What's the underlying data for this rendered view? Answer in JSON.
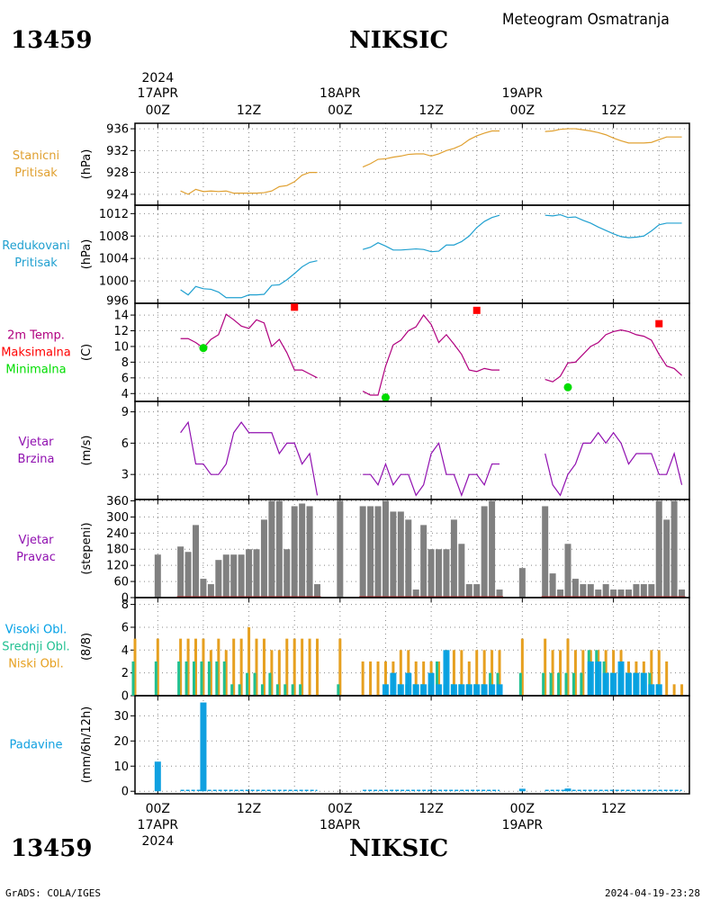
{
  "header": {
    "station_id": "13459",
    "station_name": "NIKSIC",
    "subtitle": "Meteogram Osmatranja"
  },
  "footer": {
    "credit": "GrADS: COLA/IGES",
    "timestamp": "2024-04-19-23:28"
  },
  "time_axis": {
    "year": "2024",
    "top_days": [
      "17APR",
      "18APR",
      "19APR"
    ],
    "bottom_days": [
      "17APR",
      "18APR",
      "19APR"
    ],
    "hour_labels": [
      "00Z",
      "12Z",
      "00Z",
      "12Z",
      "00Z",
      "12Z"
    ],
    "x_range_hours": [
      -3,
      70
    ]
  },
  "colors": {
    "pressure": "#e0a030",
    "reduced": "#20a0d0",
    "temp": "#b0007f",
    "tmax": "#ff0000",
    "tmin": "#00dd00",
    "wind": "#9010b0",
    "dir_bar": "#808080",
    "cloud_high": "#00a0e6",
    "cloud_mid": "#20c090",
    "cloud_low": "#e6a020",
    "precip": "#10a0e0"
  },
  "chart_data": [
    {
      "type": "line",
      "name": "pressure",
      "labels": [
        "Stanicni",
        "Pritisak"
      ],
      "ylabel": "(hPa)",
      "ylim": [
        922,
        937
      ],
      "yticks": [
        924,
        928,
        932,
        936
      ],
      "segments": [
        {
          "x": [
            3,
            4,
            5,
            6,
            7,
            8,
            9,
            10,
            11,
            12,
            13,
            14,
            15,
            16,
            17,
            18,
            19,
            20,
            21
          ],
          "y": [
            924.6,
            924.0,
            924.9,
            924.5,
            924.6,
            924.5,
            924.6,
            924.2,
            924.2,
            924.2,
            924.2,
            924.3,
            924.6,
            925.4,
            925.6,
            926.3,
            927.5,
            928.0,
            928.0
          ]
        },
        {
          "x": [
            27,
            28,
            29,
            30,
            31,
            32,
            33,
            34,
            35,
            36,
            37,
            38,
            39,
            40,
            41,
            42,
            43,
            44,
            45
          ],
          "y": [
            929.0,
            929.6,
            930.4,
            930.5,
            930.8,
            931.0,
            931.3,
            931.4,
            931.4,
            931.0,
            931.4,
            932.0,
            932.4,
            933.0,
            934.0,
            934.7,
            935.2,
            935.6,
            935.6
          ]
        },
        {
          "x": [
            51,
            52,
            53,
            54,
            55,
            56,
            57,
            58,
            59,
            60,
            61,
            62,
            63,
            64,
            65,
            66,
            67,
            68,
            69
          ],
          "y": [
            935.5,
            935.6,
            935.9,
            936.0,
            936.0,
            935.8,
            935.6,
            935.3,
            934.9,
            934.3,
            933.8,
            933.4,
            933.4,
            933.4,
            933.5,
            934.0,
            934.5,
            934.5,
            934.5
          ]
        }
      ]
    },
    {
      "type": "line",
      "name": "reduced",
      "labels": [
        "Redukovani",
        "Pritisak"
      ],
      "ylabel": "(hPa)",
      "ylim": [
        996,
        1013.5
      ],
      "yticks": [
        1000,
        1004,
        1008,
        1012
      ],
      "ytick_labels": [
        "996",
        "1000",
        "1004",
        "1008",
        "1012"
      ],
      "segments": [
        {
          "x": [
            3,
            4,
            5,
            6,
            7,
            8,
            9,
            10,
            11,
            12,
            13,
            14,
            15,
            16,
            17,
            18,
            19,
            20,
            21
          ],
          "y": [
            998.4,
            997.5,
            999.0,
            998.6,
            998.5,
            998.0,
            997.0,
            997.0,
            997.0,
            997.5,
            997.5,
            997.6,
            999.2,
            999.3,
            1000.2,
            1001.3,
            1002.5,
            1003.3,
            1003.6
          ]
        },
        {
          "x": [
            27,
            28,
            29,
            30,
            31,
            32,
            33,
            34,
            35,
            36,
            37,
            38,
            39,
            40,
            41,
            42,
            43,
            44,
            45
          ],
          "y": [
            1005.6,
            1006.0,
            1006.8,
            1006.2,
            1005.5,
            1005.5,
            1005.6,
            1005.7,
            1005.6,
            1005.2,
            1005.3,
            1006.4,
            1006.4,
            1007.0,
            1008.0,
            1009.5,
            1010.6,
            1011.3,
            1011.7
          ]
        },
        {
          "x": [
            51,
            52,
            53,
            54,
            55,
            56,
            57,
            58,
            59,
            60,
            61,
            62,
            63,
            64,
            65,
            66,
            67,
            68,
            69
          ],
          "y": [
            1011.7,
            1011.6,
            1011.8,
            1011.3,
            1011.4,
            1010.8,
            1010.3,
            1009.6,
            1009.0,
            1008.4,
            1007.9,
            1007.7,
            1007.8,
            1008.0,
            1008.9,
            1010.0,
            1010.3,
            1010.3,
            1010.3
          ]
        }
      ]
    },
    {
      "type": "line",
      "name": "temperature",
      "labels": [
        "2m Temp.",
        "Maksimalna",
        "Minimalna"
      ],
      "ylabel": "(C)",
      "ylim": [
        3,
        15.5
      ],
      "yticks": [
        4,
        6,
        8,
        10,
        12,
        14
      ],
      "segments": [
        {
          "x": [
            3,
            4,
            5,
            6,
            7,
            8,
            9,
            10,
            11,
            12,
            13,
            14,
            15,
            16,
            17,
            18,
            19,
            20,
            21
          ],
          "y": [
            11.0,
            11.0,
            10.5,
            9.8,
            10.9,
            11.5,
            14.1,
            13.4,
            12.6,
            12.3,
            13.4,
            13.0,
            10.0,
            10.9,
            9.2,
            7.0,
            7.0,
            6.5,
            6.0
          ]
        },
        {
          "x": [
            27,
            28,
            29,
            30,
            31,
            32,
            33,
            34,
            35,
            36,
            37,
            38,
            39,
            40,
            41,
            42,
            43,
            44,
            45
          ],
          "y": [
            4.3,
            3.8,
            3.8,
            7.5,
            10.2,
            10.8,
            12.0,
            12.5,
            14.0,
            12.8,
            10.5,
            11.5,
            10.3,
            9.0,
            7.0,
            6.8,
            7.2,
            7.0,
            7.0
          ]
        },
        {
          "x": [
            51,
            52,
            53,
            54,
            55,
            56,
            57,
            58,
            59,
            60,
            61,
            62,
            63,
            64,
            65,
            66,
            67,
            68,
            69
          ],
          "y": [
            5.8,
            5.5,
            6.2,
            7.9,
            8.0,
            9.0,
            10.0,
            10.5,
            11.5,
            11.9,
            12.1,
            11.9,
            11.5,
            11.3,
            10.8,
            9.0,
            7.5,
            7.2,
            6.3
          ]
        }
      ],
      "max_markers": {
        "x": [
          18,
          42,
          66
        ],
        "y": [
          15.0,
          14.6,
          12.9
        ]
      },
      "min_markers": {
        "x": [
          6,
          30,
          54
        ],
        "y": [
          9.8,
          3.5,
          4.8
        ]
      }
    },
    {
      "type": "line",
      "name": "wind_speed",
      "labels": [
        "Vjetar",
        "Brzina"
      ],
      "ylabel": "(m/s)",
      "ylim": [
        0.6,
        10
      ],
      "yticks": [
        3,
        6,
        9
      ],
      "segments": [
        {
          "x": [
            3,
            4,
            5,
            6,
            7,
            8,
            9,
            10,
            11,
            12,
            13,
            14,
            15,
            16,
            17,
            18,
            19,
            20,
            21
          ],
          "y": [
            7,
            8,
            4,
            4,
            3,
            3,
            4,
            7,
            8,
            7,
            7,
            7,
            7,
            5,
            6,
            6,
            4,
            5,
            1
          ]
        },
        {
          "x": [
            27,
            28,
            29,
            30,
            31,
            32,
            33,
            34,
            35,
            36,
            37,
            38,
            39,
            40,
            41,
            42,
            43,
            44,
            45
          ],
          "y": [
            3,
            3,
            2,
            4,
            2,
            3,
            3,
            1,
            2,
            5,
            6,
            3,
            3,
            1,
            3,
            3,
            2,
            4,
            4
          ]
        },
        {
          "x": [
            51,
            52,
            53,
            54,
            55,
            56,
            57,
            58,
            59,
            60,
            61,
            62,
            63,
            64,
            65,
            66,
            67,
            68,
            69
          ],
          "y": [
            5,
            2,
            1,
            3,
            4,
            6,
            6,
            7,
            6,
            7,
            6,
            4,
            5,
            5,
            5,
            3,
            3,
            5,
            2
          ]
        }
      ]
    },
    {
      "type": "bar",
      "name": "wind_direction",
      "labels": [
        "Vjetar",
        "Pravac"
      ],
      "ylabel": "(stepeni)",
      "ylim": [
        0,
        365
      ],
      "yticks": [
        0,
        60,
        120,
        180,
        240,
        300,
        360
      ],
      "x": [
        0,
        3,
        4,
        5,
        6,
        7,
        8,
        9,
        10,
        11,
        12,
        13,
        14,
        15,
        16,
        17,
        18,
        19,
        20,
        21,
        24,
        27,
        28,
        29,
        30,
        31,
        32,
        33,
        34,
        35,
        36,
        37,
        38,
        39,
        40,
        41,
        42,
        43,
        44,
        45,
        48,
        51,
        52,
        53,
        54,
        55,
        56,
        57,
        58,
        59,
        60,
        61,
        62,
        63,
        64,
        65,
        66,
        67,
        68,
        69
      ],
      "values": [
        160,
        190,
        170,
        270,
        70,
        50,
        140,
        160,
        160,
        160,
        180,
        180,
        290,
        360,
        360,
        180,
        340,
        350,
        340,
        50,
        360,
        340,
        340,
        340,
        360,
        320,
        320,
        290,
        30,
        270,
        180,
        180,
        180,
        290,
        200,
        50,
        50,
        340,
        360,
        30,
        110,
        340,
        90,
        30,
        200,
        70,
        50,
        50,
        30,
        50,
        30,
        30,
        30,
        50,
        50,
        50,
        360,
        290,
        360,
        30
      ]
    },
    {
      "type": "bar",
      "name": "clouds",
      "labels": [
        "Visoki Obl.",
        "Srednji Obl.",
        "Niski Obl."
      ],
      "ylabel": "(8/8)",
      "ylim": [
        0,
        8.6
      ],
      "yticks": [
        0,
        2,
        4,
        6,
        8
      ],
      "x": [
        -3,
        0,
        3,
        4,
        5,
        6,
        7,
        8,
        9,
        10,
        11,
        12,
        13,
        14,
        15,
        16,
        17,
        18,
        19,
        20,
        21,
        24,
        27,
        28,
        29,
        30,
        31,
        32,
        33,
        34,
        35,
        36,
        37,
        38,
        39,
        40,
        41,
        42,
        43,
        44,
        45,
        48,
        51,
        52,
        53,
        54,
        55,
        56,
        57,
        58,
        59,
        60,
        61,
        62,
        63,
        64,
        65,
        66,
        67,
        68,
        69
      ],
      "series": [
        {
          "name": "Niski Obl.",
          "values": [
            5,
            5,
            5,
            5,
            5,
            5,
            4,
            5,
            4,
            5,
            5,
            6,
            5,
            5,
            4,
            4,
            5,
            5,
            5,
            5,
            5,
            5,
            3,
            3,
            3,
            3,
            3,
            4,
            4,
            3,
            3,
            3,
            3,
            4,
            4,
            4,
            3,
            4,
            4,
            4,
            4,
            5,
            5,
            4,
            4,
            5,
            4,
            4,
            4,
            4,
            4,
            4,
            4,
            3,
            3,
            3,
            4,
            4,
            3,
            1,
            1
          ]
        },
        {
          "name": "Srednji Obl.",
          "values": [
            3,
            3,
            3,
            3,
            3,
            3,
            3,
            3,
            3,
            1,
            1,
            2,
            2,
            1,
            2,
            1,
            1,
            1,
            1,
            0,
            0,
            1,
            0,
            0,
            0,
            0,
            0,
            1,
            1,
            1,
            1,
            1,
            3,
            1,
            1,
            1,
            1,
            1,
            1,
            2,
            2,
            2,
            2,
            2,
            2,
            2,
            2,
            2,
            4,
            4,
            3,
            2,
            2,
            2,
            2,
            2,
            2,
            1,
            0,
            0,
            0
          ]
        },
        {
          "name": "Visoki Obl.",
          "values": [
            0,
            0,
            0,
            0,
            0,
            0,
            0,
            0,
            0,
            0,
            0,
            0,
            0,
            0,
            0,
            0,
            0,
            0,
            0,
            0,
            0,
            0,
            0,
            0,
            0,
            1,
            2,
            1,
            2,
            1,
            1,
            2,
            1,
            4,
            1,
            1,
            1,
            1,
            1,
            1,
            1,
            0,
            0,
            0,
            0,
            0,
            0,
            0,
            3,
            3,
            2,
            2,
            3,
            2,
            2,
            2,
            1,
            1,
            0,
            0,
            0
          ]
        }
      ]
    },
    {
      "type": "bar",
      "name": "precipitation",
      "labels": [
        "Padavine"
      ],
      "ylabel": "(mm/6h/12h)",
      "ylim": [
        -1,
        38
      ],
      "yticks": [
        0,
        10,
        20,
        30
      ],
      "x": [
        0,
        6,
        48,
        54
      ],
      "values": [
        11.8,
        35.3,
        1.0,
        1.1
      ],
      "trace": true
    }
  ]
}
